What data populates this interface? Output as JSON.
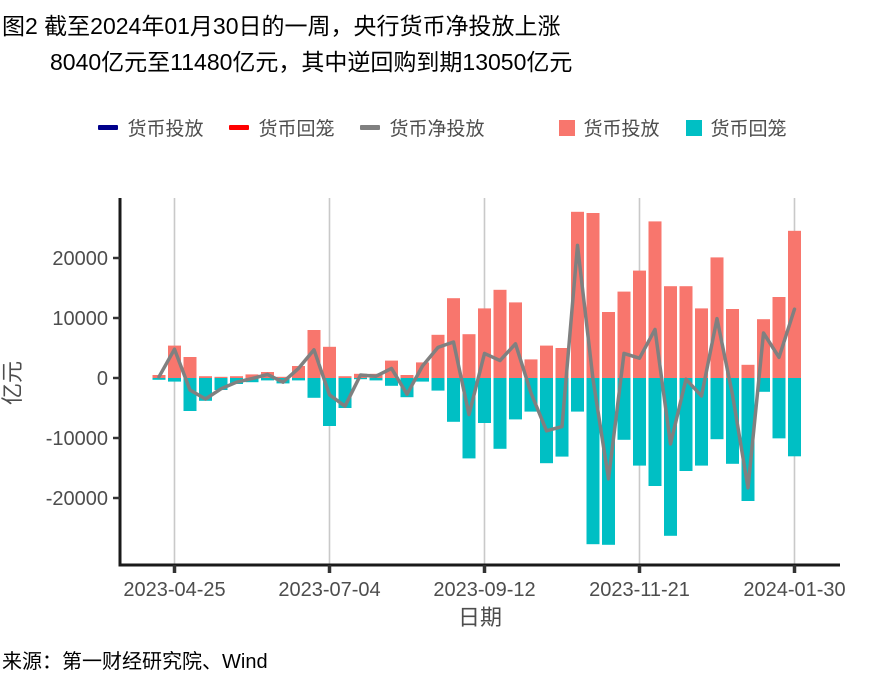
{
  "title": {
    "line1": "图2 截至2024年01月30日的一周，央行货币净投放上涨",
    "line2": "8040亿元至11480亿元，其中逆回购到期13050亿元"
  },
  "legend": {
    "line_items": [
      {
        "label": "货币投放",
        "color": "#00008B"
      },
      {
        "label": "货币回笼",
        "color": "#FF0000"
      },
      {
        "label": "货币净投放",
        "color": "#808080"
      }
    ],
    "bar_items": [
      {
        "label": "货币投放",
        "color": "#F8766D"
      },
      {
        "label": "货币回笼",
        "color": "#00BFC4"
      }
    ]
  },
  "chart_data": {
    "type": "bar",
    "title": "",
    "xlabel": "日期",
    "ylabel": "亿元",
    "ylim": [
      -31000,
      30000
    ],
    "yticks": [
      -20000,
      -10000,
      0,
      10000,
      20000
    ],
    "xticks": [
      "2023-04-25",
      "2023-07-04",
      "2023-09-12",
      "2023-11-21",
      "2024-01-30"
    ],
    "grid": "vertical-at-xticks",
    "legend_position": "top",
    "x": [
      "2023-04-18",
      "2023-04-25",
      "2023-05-02",
      "2023-05-09",
      "2023-05-16",
      "2023-05-23",
      "2023-05-30",
      "2023-06-06",
      "2023-06-13",
      "2023-06-20",
      "2023-06-27",
      "2023-07-04",
      "2023-07-11",
      "2023-07-18",
      "2023-07-25",
      "2023-08-01",
      "2023-08-08",
      "2023-08-15",
      "2023-08-22",
      "2023-08-29",
      "2023-09-05",
      "2023-09-12",
      "2023-09-19",
      "2023-09-26",
      "2023-10-03",
      "2023-10-10",
      "2023-10-17",
      "2023-10-24",
      "2023-10-31",
      "2023-11-07",
      "2023-11-14",
      "2023-11-21",
      "2023-11-28",
      "2023-12-05",
      "2023-12-12",
      "2023-12-19",
      "2023-12-26",
      "2024-01-02",
      "2024-01-09",
      "2024-01-16",
      "2024-01-23",
      "2024-01-30"
    ],
    "series": [
      {
        "name": "货币投放",
        "type": "bar",
        "color": "#F8766D",
        "values": [
          500,
          5400,
          3500,
          300,
          200,
          300,
          600,
          1000,
          200,
          2000,
          8000,
          5200,
          300,
          700,
          700,
          2900,
          500,
          2600,
          7200,
          13300,
          7300,
          11600,
          14700,
          12600,
          3100,
          5400,
          5000,
          27700,
          27500,
          11000,
          14400,
          17900,
          26100,
          15300,
          15300,
          11600,
          20100,
          11500,
          2200,
          9800,
          13500,
          24530
        ]
      },
      {
        "name": "货币回笼",
        "type": "bar",
        "color": "#00BFC4",
        "values": [
          -300,
          -600,
          -5500,
          -3800,
          -2000,
          -1000,
          -700,
          -400,
          -900,
          -400,
          -3300,
          -8000,
          -5000,
          -200,
          -400,
          -1300,
          -3200,
          -600,
          -2100,
          -7300,
          -13400,
          -7500,
          -11800,
          -6900,
          -5600,
          -14200,
          -13100,
          -5600,
          -27700,
          -27800,
          -10300,
          -14600,
          -18000,
          -26300,
          -15500,
          -14600,
          -10200,
          -14300,
          -20500,
          -2300,
          -10060,
          -13050
        ]
      },
      {
        "name": "货币净投放",
        "type": "line",
        "color": "#808080",
        "values": [
          200,
          4800,
          -2000,
          -3500,
          -1800,
          -700,
          -100,
          600,
          -700,
          1600,
          4700,
          -2800,
          -4700,
          500,
          300,
          1600,
          -2700,
          2000,
          5100,
          6000,
          -6100,
          4100,
          2900,
          5700,
          -2500,
          -8800,
          -8100,
          22100,
          -200,
          -16800,
          4100,
          3300,
          8100,
          -11000,
          -200,
          -3000,
          9900,
          -2800,
          -18300,
          7500,
          3440,
          11480
        ]
      }
    ]
  },
  "source": {
    "text": "来源：第一财经研究院、Wind"
  }
}
